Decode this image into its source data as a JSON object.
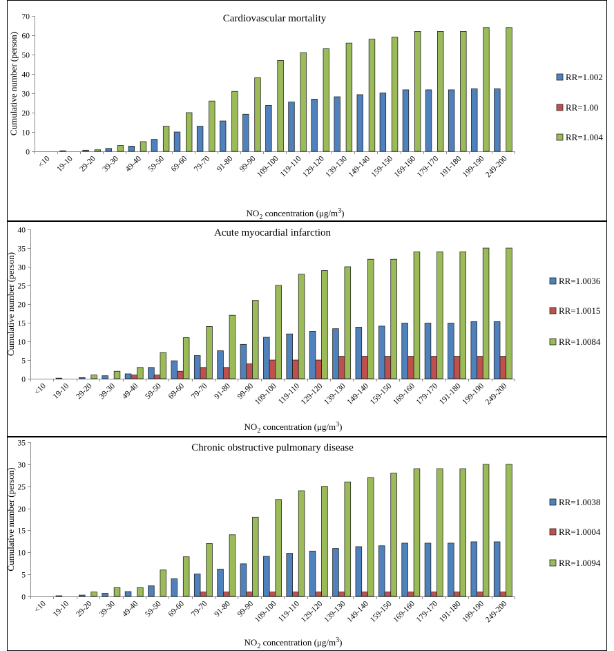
{
  "chart_data": [
    {
      "type": "bar",
      "title": "Cardiovascular mortality",
      "ylabel": "Cumulative number (person)",
      "xlabel": {
        "prefix": "NO",
        "sub": "2",
        "middle": " concentration (μg/m",
        "sup": "3",
        "suffix": ")"
      },
      "ylim": [
        0,
        70
      ],
      "yticks": [
        0,
        10,
        20,
        30,
        40,
        50,
        60,
        70
      ],
      "legend_position": "right",
      "grid": false,
      "categories": [
        "<10",
        "19-10",
        "29-20",
        "39-30",
        "49-40",
        "59-50",
        "69-60",
        "79-70",
        "91-80",
        "99-90",
        "109-100",
        "119-110",
        "129-120",
        "139-130",
        "149-140",
        "159-150",
        "169-160",
        "179-170",
        "191-180",
        "199-190",
        "249-200"
      ],
      "series": [
        {
          "name": "RR=1.002",
          "color": "#4F81BD",
          "values": [
            0,
            0.3,
            0.6,
            1.5,
            2.7,
            6.2,
            10,
            13,
            15.7,
            19.2,
            23.8,
            25.5,
            27,
            28.2,
            29.3,
            30.2,
            31.8,
            31.8,
            31.8,
            32.3,
            32.3
          ]
        },
        {
          "name": "RR=1.00",
          "color": "#C0504D",
          "values": [
            0,
            0,
            0,
            0,
            0,
            0,
            0,
            0,
            0,
            0,
            0,
            0,
            0,
            0,
            0,
            0,
            0,
            0,
            0,
            0,
            0
          ]
        },
        {
          "name": "RR=1.004",
          "color": "#9BBB59",
          "values": [
            0,
            0,
            0.8,
            3,
            5,
            13,
            20,
            26,
            31,
            38,
            47,
            51,
            53,
            56,
            58,
            59,
            62,
            62,
            62,
            64,
            64
          ]
        }
      ]
    },
    {
      "type": "bar",
      "title": "Acute myocardial infarction",
      "ylabel": "Cumulative number (person)",
      "xlabel": {
        "prefix": "NO",
        "sub": "2",
        "middle": " concentration (μg/m",
        "sup": "3",
        "suffix": ")"
      },
      "ylim": [
        0,
        40
      ],
      "yticks": [
        0,
        5,
        10,
        15,
        20,
        25,
        30,
        35,
        40
      ],
      "legend_position": "right",
      "grid": false,
      "categories": [
        "<10",
        "19-10",
        "29-20",
        "39-30",
        "49-40",
        "59-50",
        "69-60",
        "79-70",
        "91-80",
        "99-90",
        "109-100",
        "119-110",
        "129-120",
        "139-130",
        "149-140",
        "159-150",
        "169-160",
        "179-170",
        "191-180",
        "199-190",
        "249-200"
      ],
      "series": [
        {
          "name": "RR=1.0036",
          "color": "#4F81BD",
          "values": [
            0,
            0.15,
            0.3,
            0.8,
            1.3,
            3,
            4.8,
            6.2,
            7.5,
            9.2,
            11.1,
            12,
            12.7,
            13.4,
            13.8,
            14.1,
            14.9,
            14.9,
            14.9,
            15.3,
            15.3
          ]
        },
        {
          "name": "RR=1.0015",
          "color": "#C0504D",
          "values": [
            0,
            0,
            0,
            0,
            1,
            1,
            2,
            3,
            3,
            4,
            5,
            5,
            5,
            6,
            6,
            6,
            6,
            6,
            6,
            6,
            6
          ]
        },
        {
          "name": "RR=1.0084",
          "color": "#9BBB59",
          "values": [
            0,
            0,
            1,
            2,
            3,
            7,
            11,
            14,
            17,
            21,
            25,
            28,
            29,
            30,
            32,
            32,
            34,
            34,
            34,
            35,
            35
          ]
        }
      ]
    },
    {
      "type": "bar",
      "title": "Chronic obstructive pulmonary disease",
      "ylabel": "Cumulative number (person)",
      "xlabel": {
        "prefix": "NO",
        "sub": "2",
        "middle": " concentration (μg/m",
        "sup": "3",
        "suffix": ")"
      },
      "ylim": [
        0,
        35
      ],
      "yticks": [
        0,
        5,
        10,
        15,
        20,
        25,
        30,
        35
      ],
      "legend_position": "right",
      "grid": false,
      "categories": [
        "<10",
        "19-10",
        "29-20",
        "39-30",
        "49-40",
        "59-50",
        "69-60",
        "79-70",
        "91-80",
        "99-90",
        "109-100",
        "119-110",
        "129-120",
        "139-130",
        "149-140",
        "159-150",
        "169-160",
        "179-170",
        "191-180",
        "199-190",
        "249-200"
      ],
      "series": [
        {
          "name": "RR=1.0038",
          "color": "#4F81BD",
          "values": [
            0,
            0.15,
            0.3,
            0.7,
            1.1,
            2.4,
            4,
            5.1,
            6.2,
            7.4,
            9.1,
            9.8,
            10.3,
            10.9,
            11.3,
            11.5,
            12.1,
            12.1,
            12.1,
            12.4,
            12.4
          ]
        },
        {
          "name": "RR=1.0004",
          "color": "#C0504D",
          "values": [
            0,
            0,
            0,
            0,
            0,
            0,
            0,
            1,
            1,
            1,
            1,
            1,
            1,
            1,
            1,
            1,
            1,
            1,
            1,
            1,
            1
          ]
        },
        {
          "name": "RR=1.0094",
          "color": "#9BBB59",
          "values": [
            0,
            0,
            1,
            2,
            2,
            6,
            9,
            12,
            14,
            18,
            22,
            24,
            25,
            26,
            27,
            28,
            29,
            29,
            29,
            30,
            30
          ]
        }
      ]
    }
  ]
}
